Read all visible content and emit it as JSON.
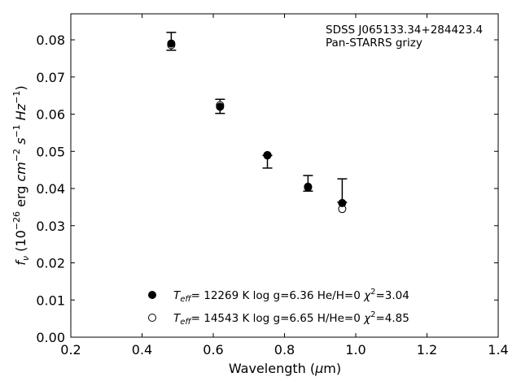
{
  "chart_data": {
    "type": "scatter",
    "title": "",
    "xlabel": "Wavelength (μm)",
    "ylabel": "fν (10⁻²⁶ erg cm⁻² s⁻¹ Hz⁻¹)",
    "xlim": [
      0.2,
      1.4
    ],
    "ylim": [
      0.0,
      0.087
    ],
    "x_ticks": [
      "0.2",
      "0.4",
      "0.6",
      "0.8",
      "1.0",
      "1.2",
      "1.4"
    ],
    "y_ticks": [
      "0.00",
      "0.01",
      "0.02",
      "0.03",
      "0.04",
      "0.05",
      "0.06",
      "0.07",
      "0.08"
    ],
    "grid": false,
    "annotations": [
      "SDSS J065133.34+284423.4",
      "Pan-STARRS grizy"
    ],
    "observed": {
      "x": [
        0.482,
        0.619,
        0.752,
        0.866,
        0.962
      ],
      "y": [
        0.0796,
        0.0621,
        0.0489,
        0.0404,
        0.0368
      ],
      "yerr_low": [
        0.0024,
        0.0019,
        0.0034,
        0.0011,
        0.0005
      ],
      "yerr_high": [
        0.0024,
        0.0019,
        0.0,
        0.0031,
        0.0058
      ]
    },
    "series": [
      {
        "name": "Teff= 12269 K  log g=6.36  He/H=0  χ²=3.04",
        "marker": "filled-circle",
        "x": [
          0.482,
          0.619,
          0.752,
          0.866,
          0.962
        ],
        "y": [
          0.079,
          0.062,
          0.0489,
          0.0403,
          0.0361
        ]
      },
      {
        "name": "Teff= 14543 K  log g=6.65  H/He=0  χ²=4.85",
        "marker": "open-circle",
        "x": [
          0.482,
          0.619,
          0.752,
          0.866,
          0.962
        ],
        "y": [
          0.0786,
          0.0624,
          0.049,
          0.0405,
          0.0345
        ]
      }
    ],
    "legend": {
      "placement": "lower-center",
      "entries": [
        {
          "teff": "12269",
          "rest": "K  log g=6.36  He/H=0  ",
          "chi": "=3.04"
        },
        {
          "teff": "14543",
          "rest": "K  log g=6.65  H/He=0  ",
          "chi": "=4.85"
        }
      ]
    }
  }
}
